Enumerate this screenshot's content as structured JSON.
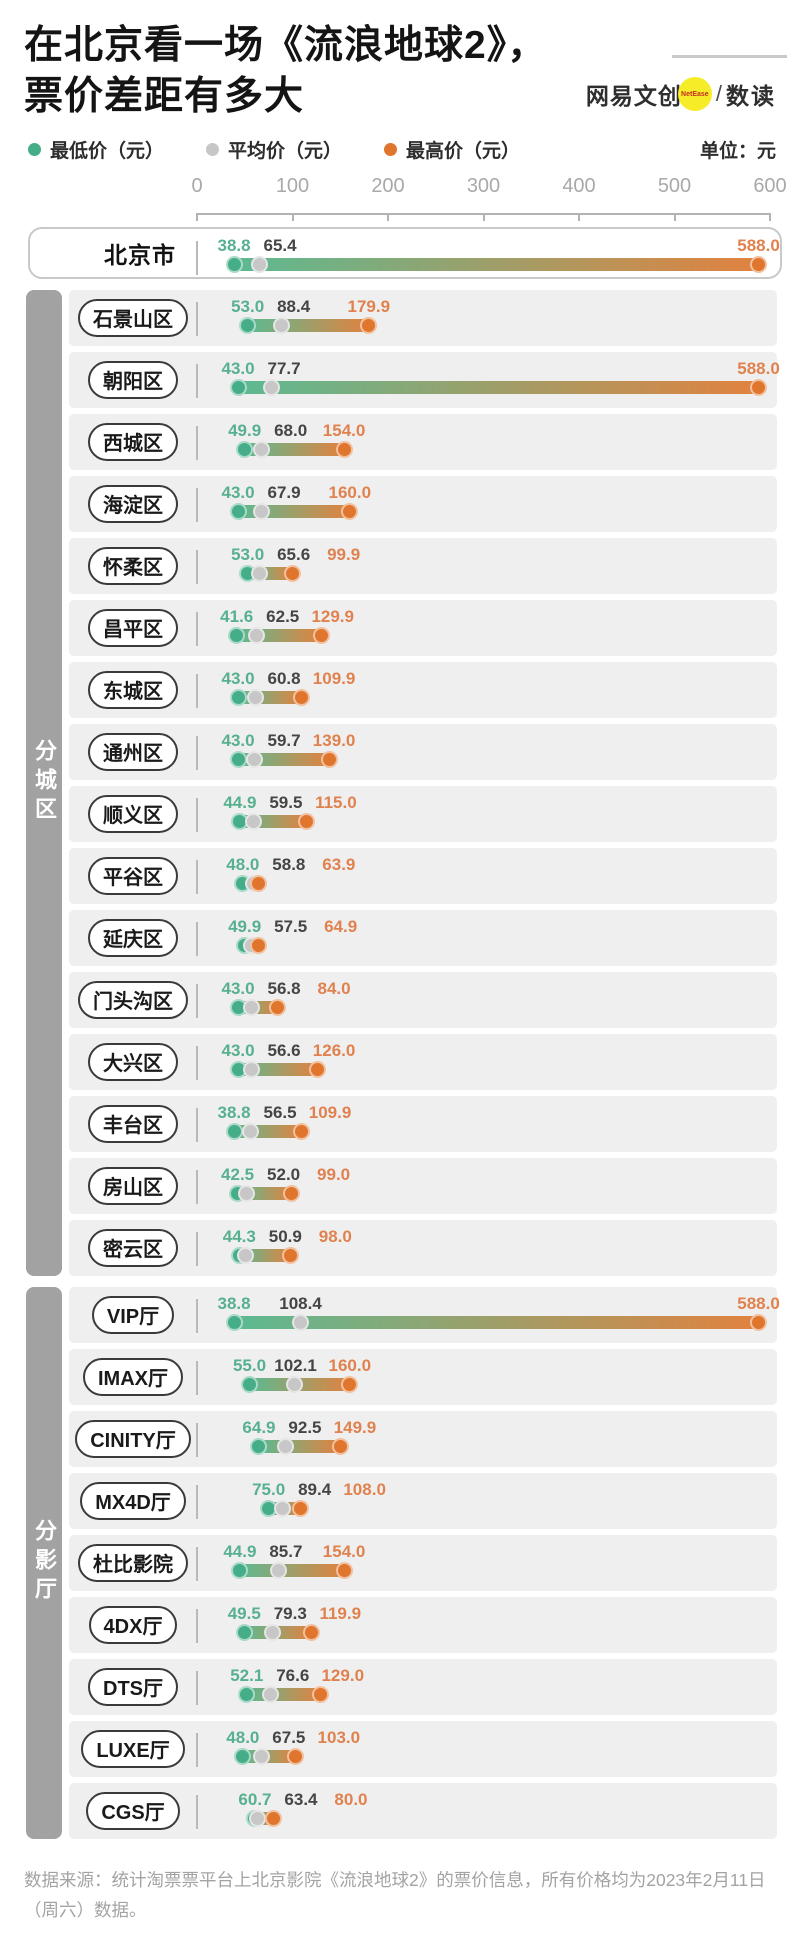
{
  "title": {
    "line1": "在北京看一场《流浪地球2》，",
    "line2": "票价差距有多大"
  },
  "logo": {
    "brand": "网易文创",
    "badge": "NetEase",
    "separator": "/",
    "sub": "数读"
  },
  "legend": [
    {
      "label": "最低价（元）",
      "color": "#45ad87"
    },
    {
      "label": "平均价（元）",
      "color": "#c7c7c7"
    },
    {
      "label": "最高价（元）",
      "color": "#e0752e"
    }
  ],
  "unit_label": "单位：元",
  "footer": "数据来源：统计淘票票平台上北京影院《流浪地球2》的票价信息，所有价格均为2023年2月11日（周六）数据。",
  "colors": {
    "min_dot": "#45ad87",
    "avg_dot": "#c7c7c7",
    "max_dot": "#e0752e",
    "bar_start": "#5cba92",
    "bar_end": "#e2823f",
    "min_label": "#57b08f",
    "avg_label": "#454545",
    "max_label": "#e0824f",
    "row_bg": "#efefef",
    "sidebar_bg": "#a2a2a2",
    "accent_yellow": "#f6ec28"
  },
  "chart_data": {
    "type": "bar",
    "subtype": "dumbbell-range",
    "title": "在北京看一场《流浪地球2》，票价差距有多大",
    "unit": "元",
    "series": [
      "最低价（元）",
      "平均价（元）",
      "最高价（元）"
    ],
    "xlim": [
      0,
      600
    ],
    "x_ticks": [
      0,
      100,
      200,
      300,
      400,
      500,
      600
    ],
    "legend_position": "top",
    "grid": false,
    "groups": [
      {
        "sidebar_label": "",
        "rows": [
          {
            "category": "北京市",
            "min": 38.8,
            "avg": 65.4,
            "max": 588.0
          }
        ]
      },
      {
        "sidebar_label": "分城区",
        "rows": [
          {
            "category": "石景山区",
            "min": 53.0,
            "avg": 88.4,
            "max": 179.9
          },
          {
            "category": "朝阳区",
            "min": 43.0,
            "avg": 77.7,
            "max": 588.0
          },
          {
            "category": "西城区",
            "min": 49.9,
            "avg": 68.0,
            "max": 154.0
          },
          {
            "category": "海淀区",
            "min": 43.0,
            "avg": 67.9,
            "max": 160.0
          },
          {
            "category": "怀柔区",
            "min": 53.0,
            "avg": 65.6,
            "max": 99.9
          },
          {
            "category": "昌平区",
            "min": 41.6,
            "avg": 62.5,
            "max": 129.9
          },
          {
            "category": "东城区",
            "min": 43.0,
            "avg": 60.8,
            "max": 109.9
          },
          {
            "category": "通州区",
            "min": 43.0,
            "avg": 59.7,
            "max": 139.0
          },
          {
            "category": "顺义区",
            "min": 44.9,
            "avg": 59.5,
            "max": 115.0
          },
          {
            "category": "平谷区",
            "min": 48.0,
            "avg": 58.8,
            "max": 63.9
          },
          {
            "category": "延庆区",
            "min": 49.9,
            "avg": 57.5,
            "max": 64.9
          },
          {
            "category": "门头沟区",
            "min": 43.0,
            "avg": 56.8,
            "max": 84.0
          },
          {
            "category": "大兴区",
            "min": 43.0,
            "avg": 56.6,
            "max": 126.0
          },
          {
            "category": "丰台区",
            "min": 38.8,
            "avg": 56.5,
            "max": 109.9
          },
          {
            "category": "房山区",
            "min": 42.5,
            "avg": 52.0,
            "max": 99.0
          },
          {
            "category": "密云区",
            "min": 44.3,
            "avg": 50.9,
            "max": 98.0
          }
        ]
      },
      {
        "sidebar_label": "分影厅",
        "rows": [
          {
            "category": "VIP厅",
            "min": 38.8,
            "avg": 108.4,
            "max": 588.0
          },
          {
            "category": "IMAX厅",
            "min": 55.0,
            "avg": 102.1,
            "max": 160.0
          },
          {
            "category": "CINITY厅",
            "min": 64.9,
            "avg": 92.5,
            "max": 149.9
          },
          {
            "category": "MX4D厅",
            "min": 75.0,
            "avg": 89.4,
            "max": 108.0
          },
          {
            "category": "杜比影院",
            "min": 44.9,
            "avg": 85.7,
            "max": 154.0
          },
          {
            "category": "4DX厅",
            "min": 49.5,
            "avg": 79.3,
            "max": 119.9
          },
          {
            "category": "DTS厅",
            "min": 52.1,
            "avg": 76.6,
            "max": 129.0
          },
          {
            "category": "LUXE厅",
            "min": 48.0,
            "avg": 67.5,
            "max": 103.0
          },
          {
            "category": "CGS厅",
            "min": 60.7,
            "avg": 63.4,
            "max": 80.0
          }
        ]
      }
    ]
  }
}
